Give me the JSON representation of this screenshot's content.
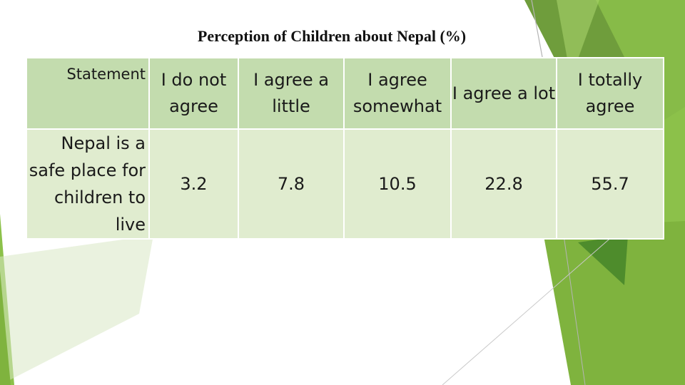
{
  "title": "Perception of Children about Nepal (%)",
  "table": {
    "headers": [
      "Statement",
      "I do not agree",
      "I agree a little",
      "I agree somewhat",
      "I agree a lot",
      "I totally agree"
    ],
    "rows": [
      {
        "statement": "Nepal is a safe place for children to live",
        "values": [
          "3.2",
          "7.8",
          "10.5",
          "22.8",
          "55.7"
        ]
      }
    ]
  },
  "colors": {
    "header_fill": "#c3dcae",
    "body_fill": "#e0eccf",
    "accent_green": "#8bc34a",
    "dark_green": "#4e8c2c"
  }
}
